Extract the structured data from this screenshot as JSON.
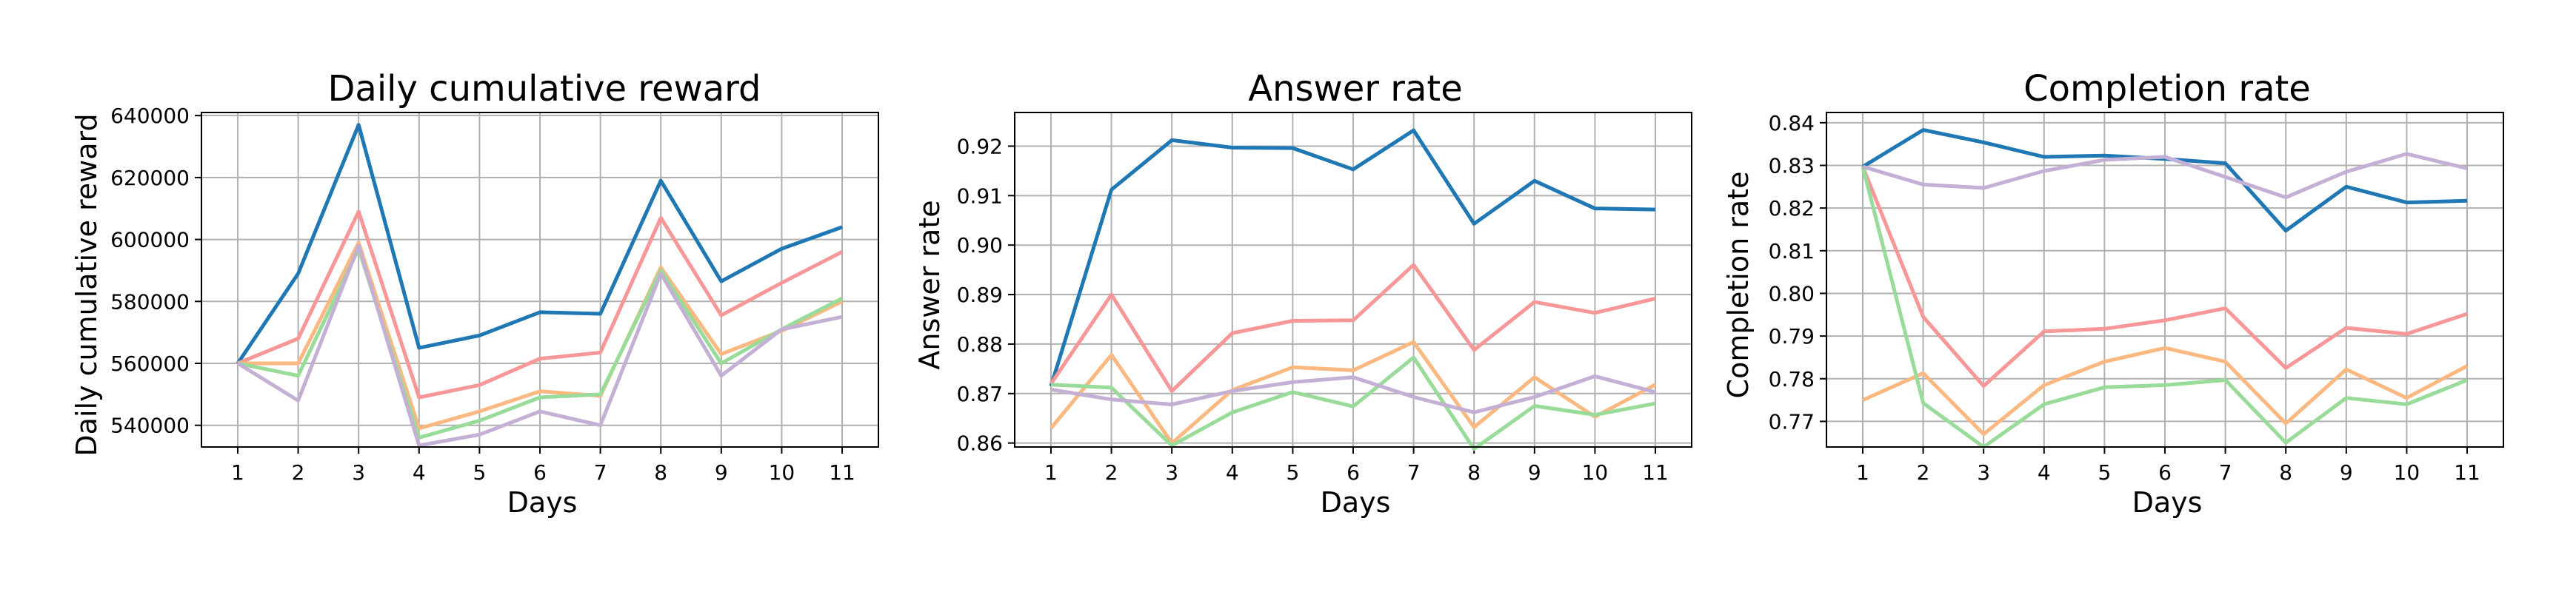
{
  "chart_data": [
    {
      "type": "line",
      "title": "Daily cumulative reward",
      "xlabel": "Days",
      "ylabel": "Daily cumulative reward",
      "x": [
        1,
        2,
        3,
        4,
        5,
        6,
        7,
        8,
        9,
        10,
        11
      ],
      "xticks": [
        "1",
        "2",
        "3",
        "4",
        "5",
        "6",
        "7",
        "8",
        "9",
        "10",
        "11"
      ],
      "yticks": [
        540000,
        560000,
        580000,
        600000,
        620000,
        640000
      ],
      "ytick_labels": [
        "540000",
        "560000",
        "580000",
        "600000",
        "620000",
        "640000"
      ],
      "xlim": [
        0.4,
        11.6
      ],
      "ylim": [
        533000,
        641000
      ],
      "grid": true,
      "series": [
        {
          "color": "#1f77b4",
          "values": [
            560000,
            589000,
            637000,
            565000,
            569000,
            576500,
            576000,
            619000,
            586500,
            597000,
            604000
          ]
        },
        {
          "color": "#f79797",
          "values": [
            560000,
            568000,
            609000,
            549000,
            553000,
            561500,
            563500,
            607000,
            575500,
            586000,
            596000
          ]
        },
        {
          "color": "#fbb880",
          "values": [
            560000,
            560000,
            599000,
            539000,
            544500,
            551000,
            549500,
            591000,
            563000,
            570500,
            580000
          ]
        },
        {
          "color": "#99db99",
          "values": [
            560000,
            556000,
            597000,
            536000,
            541500,
            549000,
            550000,
            590000,
            560000,
            571000,
            581000
          ]
        },
        {
          "color": "#c5b0d5",
          "values": [
            560000,
            548000,
            598000,
            533500,
            537000,
            544500,
            540000,
            589000,
            556000,
            571000,
            575000
          ]
        }
      ]
    },
    {
      "type": "line",
      "title": "Answer rate",
      "xlabel": "Days",
      "ylabel": "Answer rate",
      "x": [
        1,
        2,
        3,
        4,
        5,
        6,
        7,
        8,
        9,
        10,
        11
      ],
      "xticks": [
        "1",
        "2",
        "3",
        "4",
        "5",
        "6",
        "7",
        "8",
        "9",
        "10",
        "11"
      ],
      "yticks": [
        0.86,
        0.87,
        0.88,
        0.89,
        0.9,
        0.91,
        0.92
      ],
      "ytick_labels": [
        "0.86",
        "0.87",
        "0.88",
        "0.89",
        "0.90",
        "0.91",
        "0.92"
      ],
      "xlim": [
        0.4,
        11.6
      ],
      "ylim": [
        0.8592,
        0.9268
      ],
      "grid": true,
      "series": [
        {
          "color": "#1f77b4",
          "values": [
            0.8715,
            0.9112,
            0.9212,
            0.9197,
            0.9196,
            0.9153,
            0.9232,
            0.9043,
            0.913,
            0.9074,
            0.9072
          ]
        },
        {
          "color": "#f79797",
          "values": [
            0.872,
            0.89,
            0.8705,
            0.8822,
            0.8847,
            0.8848,
            0.896,
            0.8788,
            0.8885,
            0.8863,
            0.8892
          ]
        },
        {
          "color": "#fbb880",
          "values": [
            0.863,
            0.8778,
            0.86,
            0.8707,
            0.8753,
            0.8747,
            0.8804,
            0.8632,
            0.8733,
            0.8653,
            0.8718
          ]
        },
        {
          "color": "#99db99",
          "values": [
            0.8718,
            0.8712,
            0.8595,
            0.8662,
            0.8703,
            0.8674,
            0.8773,
            0.8588,
            0.8675,
            0.8657,
            0.868
          ]
        },
        {
          "color": "#c5b0d5",
          "values": [
            0.8708,
            0.8688,
            0.8678,
            0.8705,
            0.8723,
            0.8733,
            0.8693,
            0.8662,
            0.8693,
            0.8735,
            0.8703
          ]
        }
      ]
    },
    {
      "type": "line",
      "title": "Completion rate",
      "xlabel": "Days",
      "ylabel": "Completion rate",
      "x": [
        1,
        2,
        3,
        4,
        5,
        6,
        7,
        8,
        9,
        10,
        11
      ],
      "xticks": [
        "1",
        "2",
        "3",
        "4",
        "5",
        "6",
        "7",
        "8",
        "9",
        "10",
        "11"
      ],
      "yticks": [
        0.77,
        0.78,
        0.79,
        0.8,
        0.81,
        0.82,
        0.83,
        0.84
      ],
      "ytick_labels": [
        "0.77",
        "0.78",
        "0.79",
        "0.80",
        "0.81",
        "0.82",
        "0.83",
        "0.84"
      ],
      "xlim": [
        0.4,
        11.6
      ],
      "ylim": [
        0.764,
        0.8424
      ],
      "grid": true,
      "series": [
        {
          "color": "#1f77b4",
          "values": [
            0.8297,
            0.8383,
            0.8354,
            0.832,
            0.8323,
            0.8315,
            0.8305,
            0.8147,
            0.825,
            0.8213,
            0.8217
          ]
        },
        {
          "color": "#f79797",
          "values": [
            0.8297,
            0.7945,
            0.7783,
            0.7911,
            0.7917,
            0.7937,
            0.7965,
            0.7825,
            0.7919,
            0.7905,
            0.7952
          ]
        },
        {
          "color": "#fbb880",
          "values": [
            0.775,
            0.7813,
            0.767,
            0.7785,
            0.784,
            0.7872,
            0.784,
            0.7695,
            0.7822,
            0.7755,
            0.783
          ]
        },
        {
          "color": "#99db99",
          "values": [
            0.8297,
            0.7743,
            0.764,
            0.774,
            0.778,
            0.7785,
            0.7797,
            0.765,
            0.7755,
            0.774,
            0.7797
          ]
        },
        {
          "color": "#c5b0d5",
          "values": [
            0.8297,
            0.8255,
            0.8247,
            0.8287,
            0.8313,
            0.832,
            0.8273,
            0.8225,
            0.8285,
            0.8327,
            0.8293
          ]
        }
      ]
    }
  ]
}
